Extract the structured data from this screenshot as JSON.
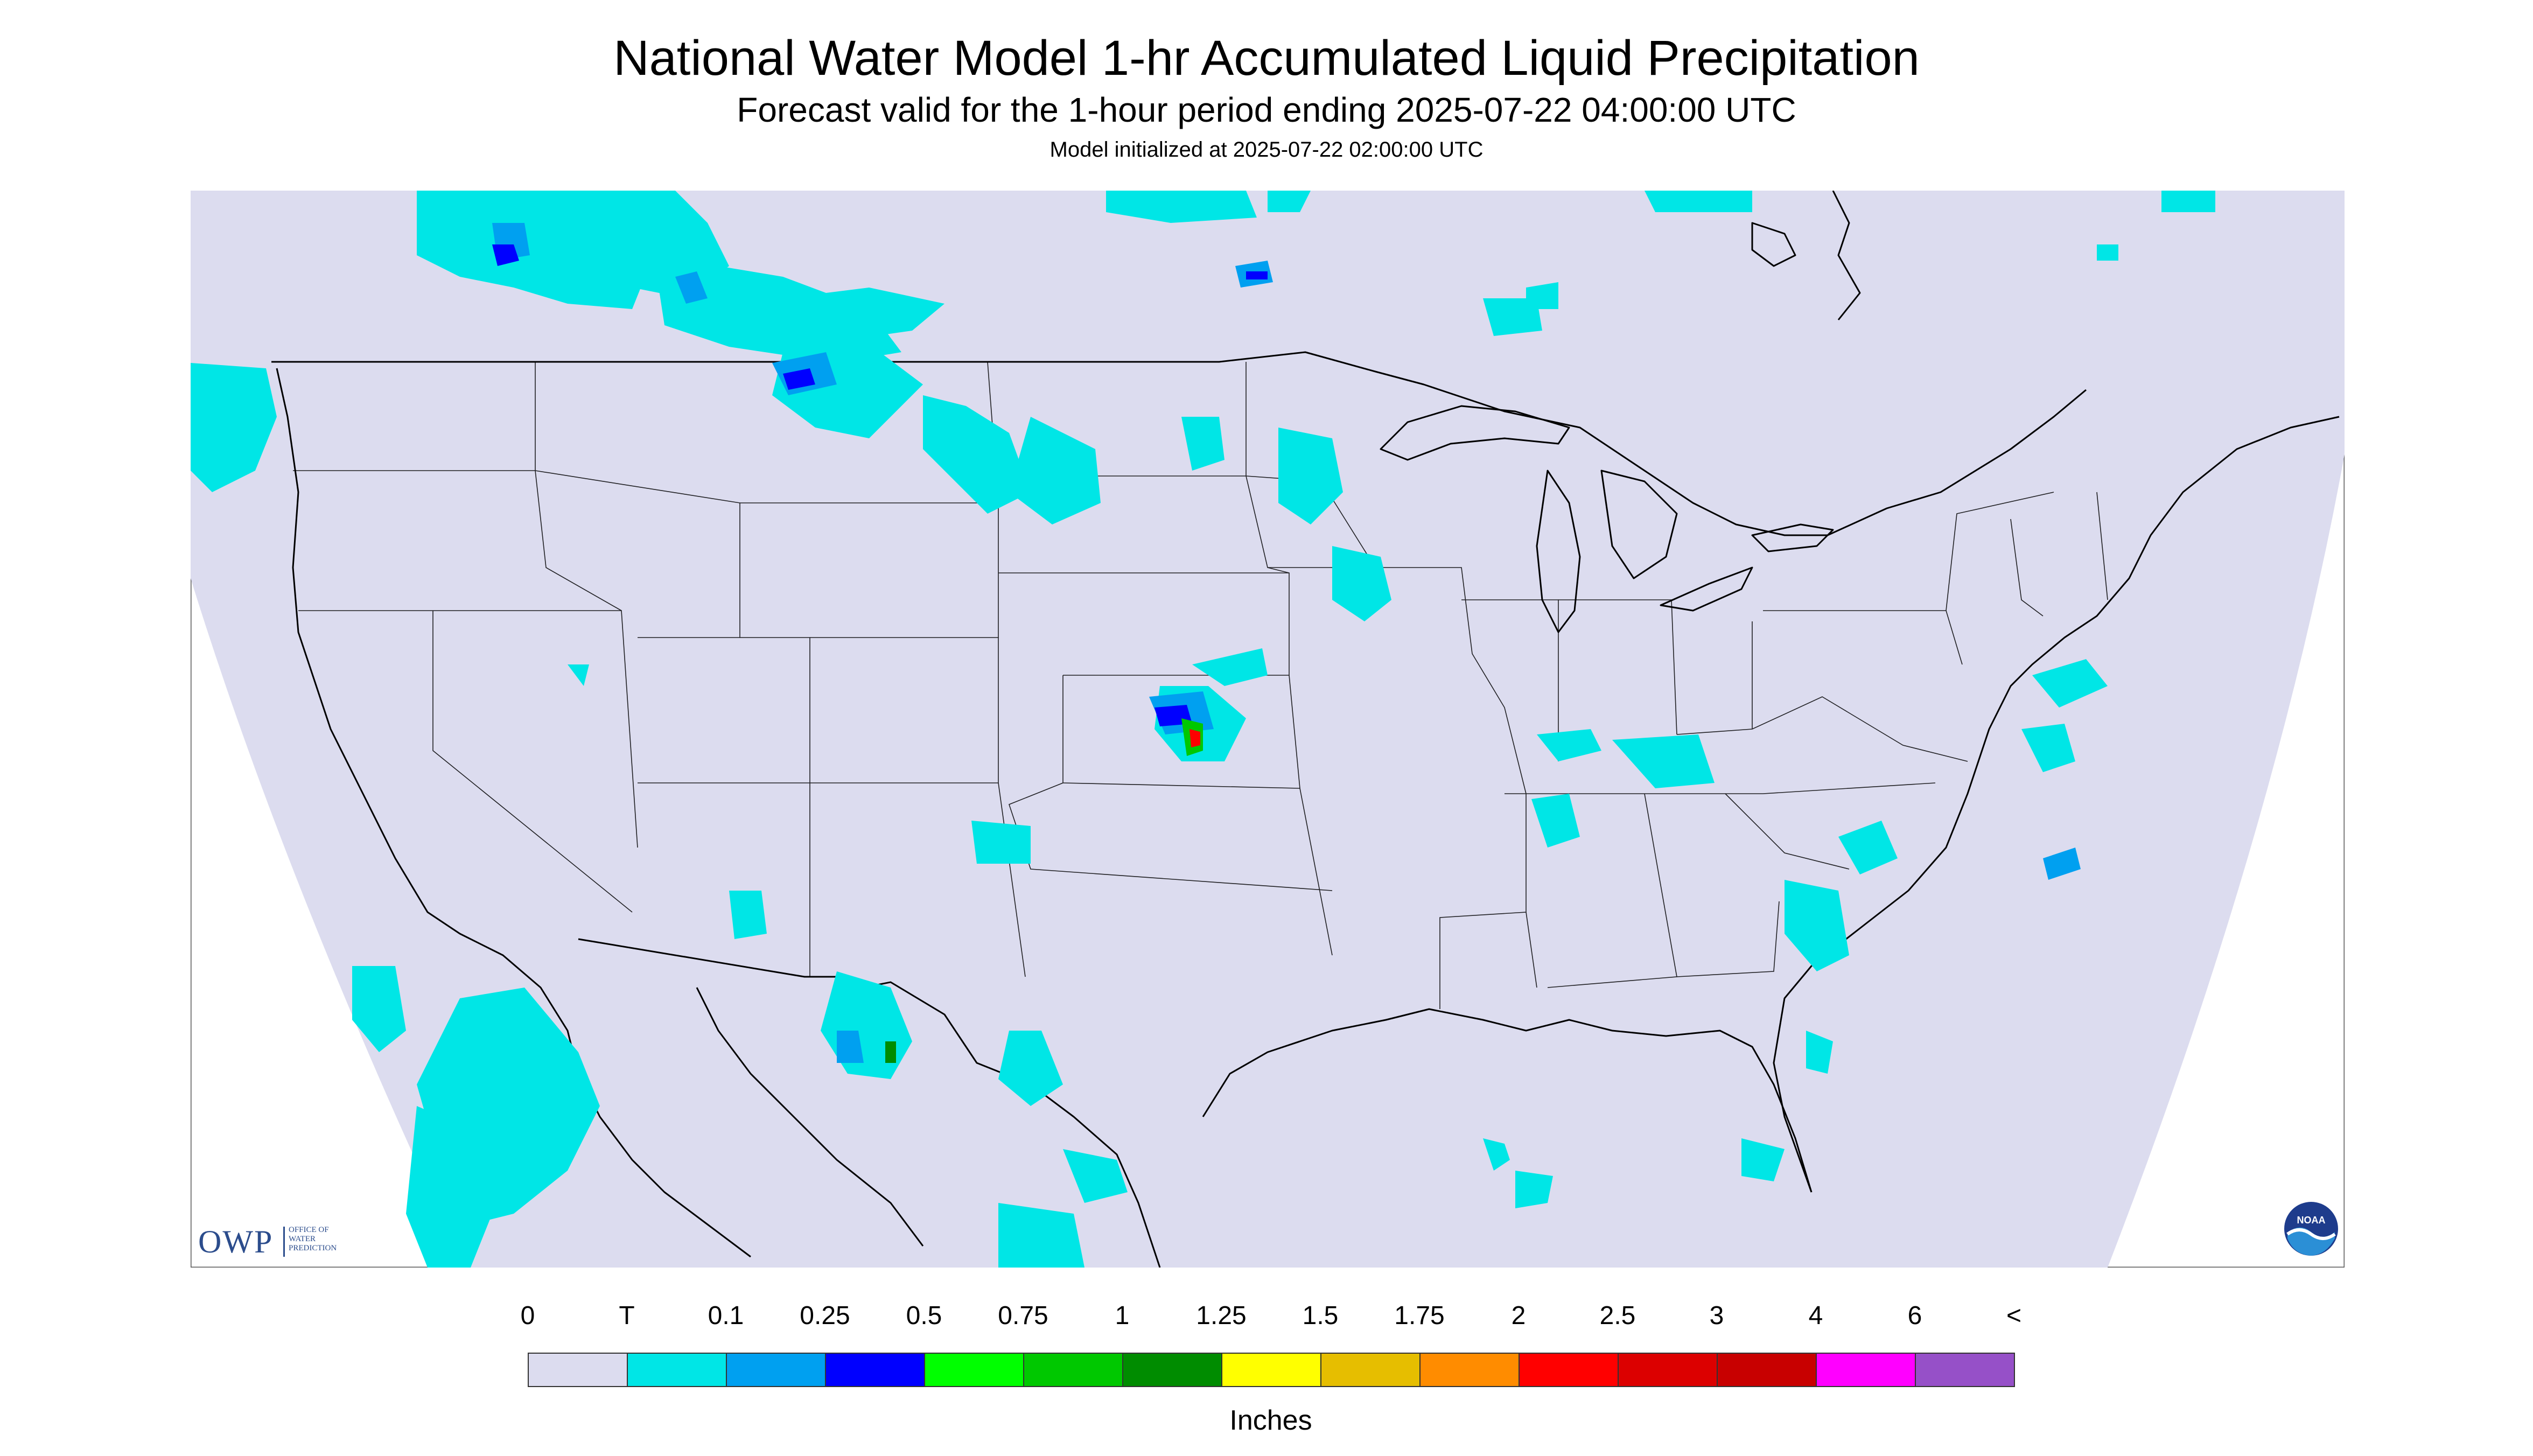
{
  "header": {
    "title": "National Water Model 1-hr Accumulated Liquid Precipitation",
    "subtitle": "Forecast valid for the 1-hour period ending 2025-07-22 04:00:00 UTC",
    "init_line": "Model initialized at 2025-07-22 02:00:00 UTC"
  },
  "logos": {
    "owp_mark": "OWP",
    "owp_line1": "Office of",
    "owp_line2": "Water",
    "owp_line3": "Prediction",
    "noaa": "NOAA"
  },
  "legend": {
    "labels": [
      "0",
      "T",
      "0.1",
      "0.25",
      "0.5",
      "0.75",
      "1",
      "1.25",
      "1.5",
      "1.75",
      "2",
      "2.5",
      "3",
      "4",
      "6",
      "<"
    ],
    "colors": [
      "#dcdcef",
      "#00e6e6",
      "#00a0f0",
      "#0000ff",
      "#00ff00",
      "#00c800",
      "#008c00",
      "#ffff00",
      "#e6be00",
      "#ff8c00",
      "#ff0000",
      "#dc0000",
      "#c80000",
      "#ff00ff",
      "#9650c8"
    ],
    "units": "Inches"
  },
  "map": {
    "domain_fill": "#dcdcef",
    "outside_fill": "#ffffff",
    "border_color": "#000000",
    "precip_light": "#00e6e6",
    "precip_med": "#00a0f0",
    "precip_heavy": "#0000ff"
  }
}
